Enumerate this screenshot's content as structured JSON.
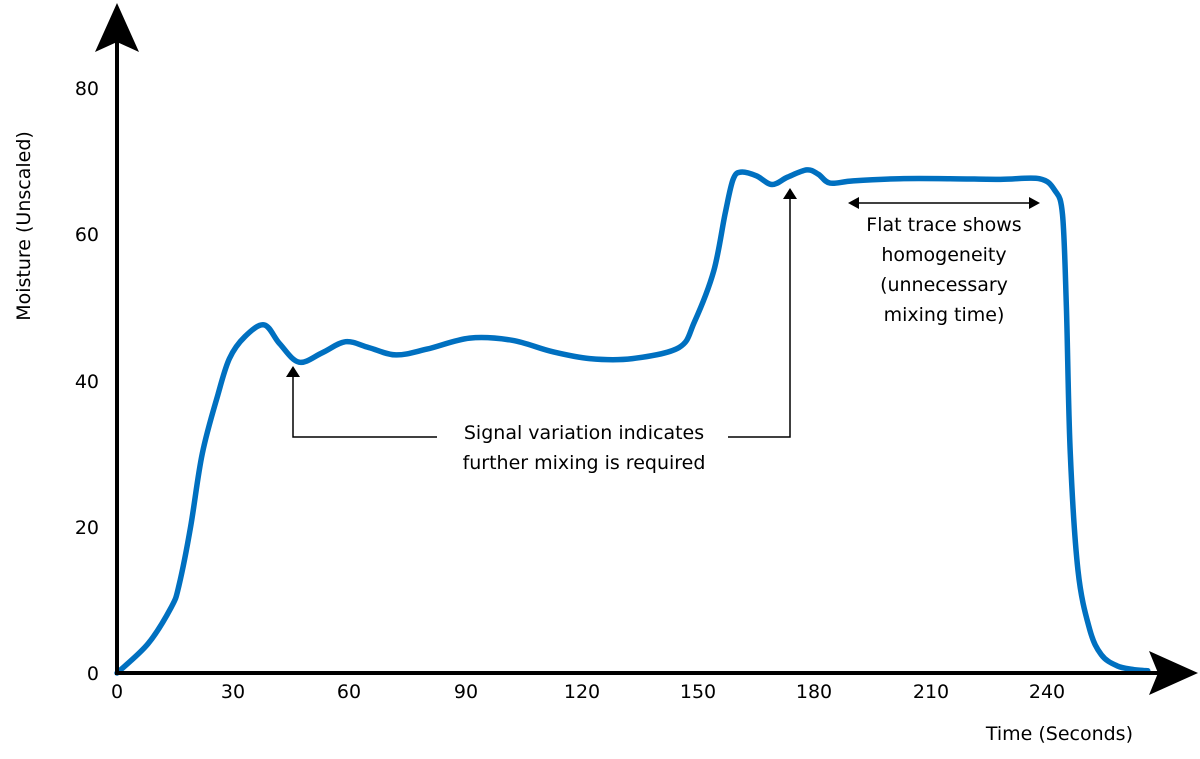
{
  "chart_data": {
    "type": "line",
    "title": "",
    "xlabel": "Time (Seconds)",
    "ylabel": "Moisture (Unscaled)",
    "xlim": [
      0,
      270
    ],
    "ylim": [
      0,
      85
    ],
    "xticks": [
      0,
      30,
      60,
      90,
      120,
      150,
      180,
      210,
      240
    ],
    "yticks": [
      0,
      20,
      40,
      60,
      80
    ],
    "grid": false,
    "legend": null,
    "line_color": "#0070C0",
    "series": [
      {
        "name": "Moisture",
        "x": [
          0,
          8,
          14,
          16,
          19,
          22,
          26,
          29,
          33,
          38,
          42,
          47,
          53,
          59,
          65,
          72,
          80,
          91,
          102,
          112,
          122,
          133,
          145,
          149,
          154,
          157,
          159,
          161,
          165,
          169,
          173,
          178,
          181,
          184,
          190,
          202,
          215,
          228,
          238,
          242,
          244,
          245,
          246,
          248,
          251,
          254,
          258,
          262,
          266
        ],
        "y": [
          0,
          4,
          9,
          12,
          20,
          30,
          38,
          43,
          46,
          47.6,
          45,
          42.5,
          43.8,
          45.3,
          44.5,
          43.5,
          44.3,
          45.8,
          45.5,
          44,
          43,
          43,
          44.5,
          48,
          55,
          63,
          67.5,
          68.5,
          68,
          66.8,
          67.8,
          68.8,
          68.2,
          67,
          67.3,
          67.6,
          67.6,
          67.5,
          67.6,
          66,
          62.7,
          50,
          30,
          14,
          6,
          2.5,
          1,
          0.5,
          0.3
        ]
      }
    ],
    "annotations": [
      {
        "text": "Signal variation indicates further mixing is required",
        "lines": [
          "Signal variation indicates",
          "further mixing is required"
        ],
        "points_to": [
          [
            47,
            42.5
          ],
          [
            173,
            66.8
          ]
        ]
      },
      {
        "text": "Flat trace shows homogeneity (unnecessary mixing time)",
        "lines": [
          "Flat trace shows",
          "homogeneity",
          "(unnecessary",
          "mixing time)"
        ],
        "span": [
          189,
          237
        ]
      }
    ]
  },
  "axes": {
    "x_title": "Time (Seconds)",
    "y_title": "Moisture (Unscaled)",
    "x_ticks": [
      "0",
      "30",
      "60",
      "90",
      "120",
      "150",
      "180",
      "210",
      "240"
    ],
    "y_ticks": [
      "0",
      "20",
      "40",
      "60",
      "80"
    ]
  },
  "annotations": {
    "signal_variation": {
      "line1": "Signal variation indicates",
      "line2": "further mixing is required"
    },
    "flat_trace": {
      "line1": "Flat trace shows",
      "line2": "homogeneity",
      "line3": "(unnecessary",
      "line4": "mixing time)"
    }
  }
}
